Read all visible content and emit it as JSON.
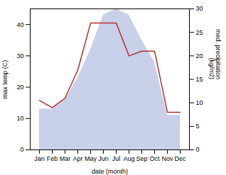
{
  "chart_data": {
    "type": "line",
    "categories": [
      "Jan",
      "Feb",
      "Mar",
      "Apr",
      "May",
      "Jun",
      "Jul",
      "Aug",
      "Sep",
      "Oct",
      "Nov",
      "Dec"
    ],
    "xlabel": "date (month)",
    "ylabel": "max temp (C)",
    "y2label": "med. precipitation\n(kg/m2)",
    "ylim": [
      0,
      45
    ],
    "yticks": [
      0,
      10,
      20,
      30,
      40
    ],
    "y2lim": [
      0,
      30
    ],
    "y2ticks": [
      0,
      5,
      10,
      15,
      20,
      25,
      30
    ],
    "grid": false,
    "series": [
      {
        "type": "area",
        "color": "#c8d0ea",
        "values": [
          13,
          13,
          16,
          23,
          32,
          43,
          45,
          43,
          35,
          28,
          11,
          11
        ]
      },
      {
        "type": "line",
        "color": "#b03030",
        "axis": "y2",
        "values": [
          10.5,
          9.0,
          11.0,
          17.0,
          27.0,
          27.0,
          27.0,
          20.0,
          21.0,
          21.0,
          8.0,
          8.0
        ]
      }
    ]
  }
}
